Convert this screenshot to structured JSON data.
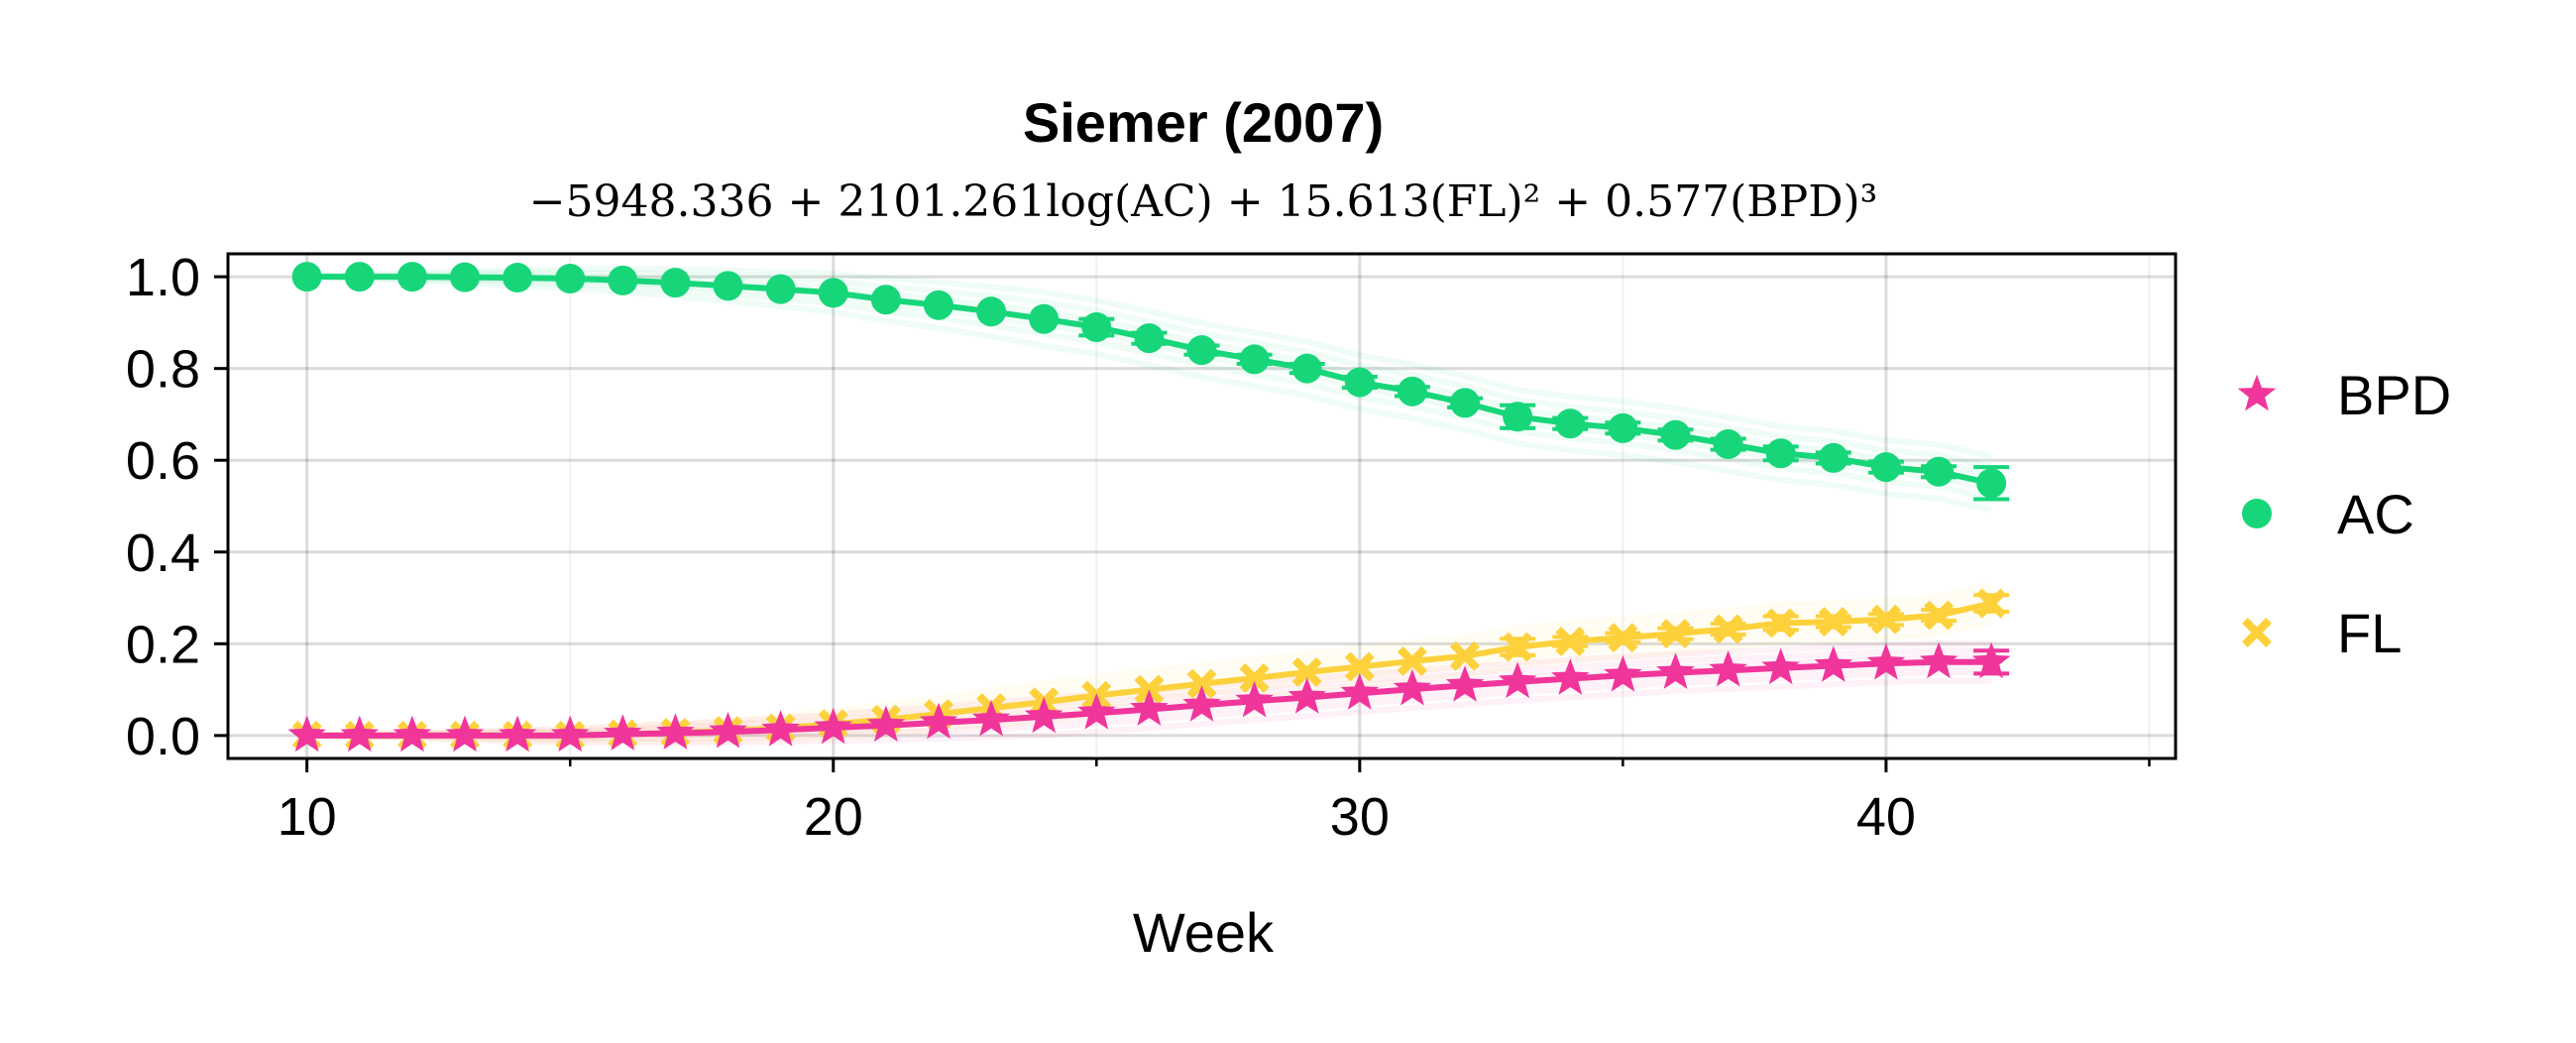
{
  "chart_data": {
    "type": "line",
    "title": "Siemer (2007)",
    "subtitle": "−5948.336 + 2101.261log(AC) + 15.613(FL)² + 0.577(BPD)³",
    "xlabel": "Week",
    "ylabel": "",
    "xlim": [
      8.5,
      45.5
    ],
    "ylim": [
      -0.05,
      1.05
    ],
    "xticks": [
      10,
      20,
      30,
      40
    ],
    "yticks": [
      0.0,
      0.2,
      0.4,
      0.6,
      0.8,
      1.0
    ],
    "xtick_labels": [
      "10",
      "20",
      "30",
      "40"
    ],
    "ytick_labels": [
      "0.0",
      "0.2",
      "0.4",
      "0.6",
      "0.8",
      "1.0"
    ],
    "grid": true,
    "legend_position": "right",
    "x": [
      10,
      11,
      12,
      13,
      14,
      15,
      16,
      17,
      18,
      19,
      20,
      21,
      22,
      23,
      24,
      25,
      26,
      27,
      28,
      29,
      30,
      31,
      32,
      33,
      34,
      35,
      36,
      37,
      38,
      39,
      40,
      41,
      42
    ],
    "series": [
      {
        "name": "BPD",
        "marker": "star",
        "color": "#f0359b",
        "values": [
          0.0,
          0.0,
          0.0,
          0.0,
          0.0,
          0.0,
          0.003,
          0.005,
          0.008,
          0.012,
          0.017,
          0.022,
          0.028,
          0.034,
          0.041,
          0.049,
          0.057,
          0.066,
          0.075,
          0.083,
          0.092,
          0.101,
          0.109,
          0.117,
          0.124,
          0.131,
          0.137,
          0.142,
          0.147,
          0.152,
          0.157,
          0.16,
          0.16
        ],
        "errors": [
          0,
          0,
          0,
          0,
          0,
          0,
          0,
          0,
          0,
          0,
          0,
          0,
          0,
          0,
          0,
          0,
          0,
          0,
          0,
          0,
          0,
          0,
          0,
          0,
          0,
          0,
          0,
          0,
          0,
          0,
          0,
          0,
          0.025
        ]
      },
      {
        "name": "AC",
        "marker": "circle",
        "color": "#17d67a",
        "values": [
          1.0,
          1.0,
          1.0,
          0.999,
          0.998,
          0.996,
          0.992,
          0.987,
          0.98,
          0.973,
          0.965,
          0.95,
          0.938,
          0.924,
          0.908,
          0.89,
          0.866,
          0.84,
          0.82,
          0.8,
          0.77,
          0.75,
          0.725,
          0.695,
          0.68,
          0.67,
          0.655,
          0.635,
          0.615,
          0.605,
          0.585,
          0.575,
          0.55
        ],
        "errors": [
          0,
          0,
          0,
          0,
          0,
          0,
          0,
          0,
          0,
          0,
          0,
          0,
          0,
          0,
          0,
          0.018,
          0.012,
          0.01,
          0.01,
          0.01,
          0.012,
          0.01,
          0.01,
          0.025,
          0.012,
          0.012,
          0.012,
          0.012,
          0.015,
          0.012,
          0.012,
          0.012,
          0.035
        ]
      },
      {
        "name": "FL",
        "marker": "cross",
        "color": "#fdd13c",
        "values": [
          0.0,
          0.0,
          0.0,
          0.0,
          0.0,
          0.0,
          0.003,
          0.006,
          0.01,
          0.016,
          0.025,
          0.035,
          0.047,
          0.06,
          0.073,
          0.087,
          0.1,
          0.113,
          0.125,
          0.138,
          0.15,
          0.162,
          0.173,
          0.193,
          0.205,
          0.213,
          0.222,
          0.232,
          0.245,
          0.248,
          0.253,
          0.262,
          0.288
        ],
        "errors": [
          0,
          0,
          0,
          0,
          0,
          0,
          0,
          0,
          0,
          0,
          0,
          0,
          0,
          0,
          0,
          0,
          0,
          0,
          0,
          0,
          0,
          0,
          0,
          0.018,
          0.01,
          0.01,
          0.012,
          0.012,
          0.015,
          0.012,
          0.012,
          0.012,
          0.018
        ]
      }
    ]
  }
}
